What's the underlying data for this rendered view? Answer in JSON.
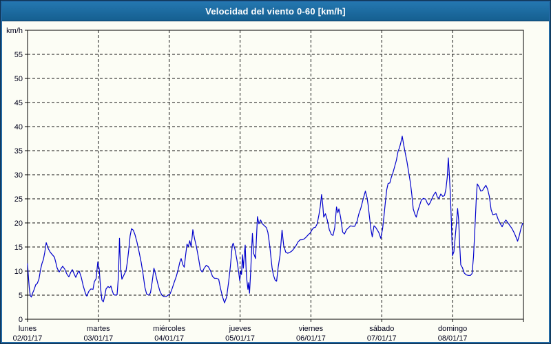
{
  "window": {
    "title": "Velocidad del viento 0-60 [km/h]"
  },
  "colors": {
    "title_bar_top": "#2477b0",
    "title_bar_bottom": "#155f90",
    "title_text": "#ffffff",
    "frame_border": "#2268a2",
    "background": "#fcfdf5",
    "plot_frame": "#000000",
    "grid": "#141414",
    "axis_text": "#00001a",
    "line": "#0000cc"
  },
  "chart_data": {
    "type": "line",
    "title": "Velocidad del viento 0-60 [km/h]",
    "ylabel": "km/h",
    "xlabel": "",
    "ylim": [
      0,
      60
    ],
    "ytick_step": 5,
    "ytick_label_max": 55,
    "grid": "dashed",
    "legend": "none",
    "x_days": [
      {
        "name": "lunes",
        "date": "02/01/17"
      },
      {
        "name": "martes",
        "date": "03/01/17"
      },
      {
        "name": "miércoles",
        "date": "04/01/17"
      },
      {
        "name": "jueves",
        "date": "05/01/17"
      },
      {
        "name": "viernes",
        "date": "06/01/17"
      },
      {
        "name": "sábado",
        "date": "07/01/17"
      },
      {
        "name": "domingo",
        "date": "08/01/17"
      }
    ],
    "x_range_days": [
      0,
      7
    ],
    "series": [
      {
        "name": "Velocidad del viento",
        "unit": "km/h",
        "color": "#0000cc",
        "points": [
          [
            0.0,
            11.6
          ],
          [
            0.01,
            9.3
          ],
          [
            0.024,
            6.5
          ],
          [
            0.039,
            4.9
          ],
          [
            0.053,
            4.6
          ],
          [
            0.068,
            5.3
          ],
          [
            0.088,
            6.0
          ],
          [
            0.117,
            7.2
          ],
          [
            0.136,
            7.4
          ],
          [
            0.16,
            8.3
          ],
          [
            0.185,
            10.4
          ],
          [
            0.204,
            11.6
          ],
          [
            0.224,
            12.4
          ],
          [
            0.243,
            13.9
          ],
          [
            0.263,
            15.9
          ],
          [
            0.292,
            14.7
          ],
          [
            0.321,
            13.9
          ],
          [
            0.35,
            13.4
          ],
          [
            0.379,
            12.9
          ],
          [
            0.399,
            11.8
          ],
          [
            0.418,
            10.6
          ],
          [
            0.447,
            9.8
          ],
          [
            0.476,
            10.6
          ],
          [
            0.496,
            11.0
          ],
          [
            0.525,
            10.4
          ],
          [
            0.554,
            9.4
          ],
          [
            0.583,
            8.8
          ],
          [
            0.612,
            9.8
          ],
          [
            0.632,
            10.3
          ],
          [
            0.661,
            9.3
          ],
          [
            0.681,
            8.7
          ],
          [
            0.71,
            9.7
          ],
          [
            0.729,
            10.0
          ],
          [
            0.758,
            8.7
          ],
          [
            0.787,
            6.9
          ],
          [
            0.817,
            5.4
          ],
          [
            0.836,
            4.8
          ],
          [
            0.865,
            5.8
          ],
          [
            0.894,
            6.3
          ],
          [
            0.924,
            6.2
          ],
          [
            0.943,
            7.8
          ],
          [
            0.967,
            8.4
          ],
          [
            0.992,
            11.9
          ],
          [
            1.011,
            10.5
          ],
          [
            1.031,
            6.5
          ],
          [
            1.05,
            4.0
          ],
          [
            1.069,
            3.6
          ],
          [
            1.089,
            4.8
          ],
          [
            1.108,
            6.3
          ],
          [
            1.137,
            6.8
          ],
          [
            1.157,
            6.5
          ],
          [
            1.176,
            6.9
          ],
          [
            1.196,
            5.9
          ],
          [
            1.215,
            5.1
          ],
          [
            1.244,
            5.0
          ],
          [
            1.264,
            5.1
          ],
          [
            1.283,
            9.0
          ],
          [
            1.298,
            16.8
          ],
          [
            1.312,
            11.0
          ],
          [
            1.332,
            8.3
          ],
          [
            1.351,
            8.9
          ],
          [
            1.371,
            9.5
          ],
          [
            1.39,
            10.1
          ],
          [
            1.41,
            12.0
          ],
          [
            1.429,
            14.5
          ],
          [
            1.448,
            17.3
          ],
          [
            1.468,
            18.8
          ],
          [
            1.492,
            18.5
          ],
          [
            1.516,
            17.6
          ],
          [
            1.545,
            16.0
          ],
          [
            1.574,
            14.0
          ],
          [
            1.604,
            11.8
          ],
          [
            1.633,
            9.1
          ],
          [
            1.657,
            6.6
          ],
          [
            1.682,
            5.2
          ],
          [
            1.711,
            5.0
          ],
          [
            1.735,
            5.5
          ],
          [
            1.76,
            7.8
          ],
          [
            1.784,
            10.6
          ],
          [
            1.808,
            9.3
          ],
          [
            1.837,
            7.5
          ],
          [
            1.867,
            5.9
          ],
          [
            1.896,
            5.0
          ],
          [
            1.925,
            4.7
          ],
          [
            1.954,
            4.7
          ],
          [
            1.983,
            5.0
          ],
          [
            2.013,
            5.3
          ],
          [
            2.042,
            6.4
          ],
          [
            2.071,
            7.7
          ],
          [
            2.1,
            8.9
          ],
          [
            2.129,
            10.5
          ],
          [
            2.149,
            11.8
          ],
          [
            2.168,
            12.6
          ],
          [
            2.193,
            11.3
          ],
          [
            2.212,
            10.8
          ],
          [
            2.231,
            13.3
          ],
          [
            2.251,
            15.6
          ],
          [
            2.27,
            15.1
          ],
          [
            2.29,
            16.3
          ],
          [
            2.309,
            15.0
          ],
          [
            2.333,
            18.6
          ],
          [
            2.358,
            16.7
          ],
          [
            2.382,
            15.2
          ],
          [
            2.411,
            12.9
          ],
          [
            2.44,
            10.3
          ],
          [
            2.465,
            9.8
          ],
          [
            2.494,
            10.6
          ],
          [
            2.523,
            11.2
          ],
          [
            2.552,
            10.9
          ],
          [
            2.581,
            10.1
          ],
          [
            2.61,
            8.9
          ],
          [
            2.64,
            8.5
          ],
          [
            2.669,
            8.5
          ],
          [
            2.698,
            8.3
          ],
          [
            2.722,
            6.5
          ],
          [
            2.751,
            4.7
          ],
          [
            2.781,
            3.4
          ],
          [
            2.81,
            4.6
          ],
          [
            2.839,
            7.8
          ],
          [
            2.863,
            11.0
          ],
          [
            2.888,
            15.2
          ],
          [
            2.902,
            15.8
          ],
          [
            2.926,
            14.6
          ],
          [
            2.956,
            12.3
          ],
          [
            2.98,
            9.8
          ],
          [
            2.995,
            8.0
          ],
          [
            3.009,
            9.9
          ],
          [
            3.021,
            9.3
          ],
          [
            3.033,
            13.4
          ],
          [
            3.046,
            10.6
          ],
          [
            3.062,
            13.8
          ],
          [
            3.072,
            15.4
          ],
          [
            3.085,
            10.5
          ],
          [
            3.094,
            8.4
          ],
          [
            3.111,
            6.2
          ],
          [
            3.121,
            7.6
          ],
          [
            3.133,
            5.4
          ],
          [
            3.15,
            10.0
          ],
          [
            3.162,
            14.0
          ],
          [
            3.174,
            17.8
          ],
          [
            3.191,
            13.7
          ],
          [
            3.218,
            12.6
          ],
          [
            3.245,
            21.3
          ],
          [
            3.266,
            19.8
          ],
          [
            3.29,
            20.6
          ],
          [
            3.315,
            19.8
          ],
          [
            3.344,
            19.4
          ],
          [
            3.373,
            19.0
          ],
          [
            3.393,
            18.0
          ],
          [
            3.419,
            15.2
          ],
          [
            3.434,
            13.1
          ],
          [
            3.451,
            10.7
          ],
          [
            3.47,
            9.2
          ],
          [
            3.495,
            8.1
          ],
          [
            3.516,
            7.9
          ],
          [
            3.538,
            10.8
          ],
          [
            3.563,
            13.2
          ],
          [
            3.592,
            18.5
          ],
          [
            3.616,
            15.3
          ],
          [
            3.645,
            13.9
          ],
          [
            3.674,
            13.7
          ],
          [
            3.703,
            13.9
          ],
          [
            3.733,
            14.2
          ],
          [
            3.762,
            14.7
          ],
          [
            3.791,
            15.3
          ],
          [
            3.82,
            16.1
          ],
          [
            3.849,
            16.5
          ],
          [
            3.878,
            16.5
          ],
          [
            3.907,
            16.7
          ],
          [
            3.936,
            17.1
          ],
          [
            3.966,
            17.6
          ],
          [
            3.99,
            17.9
          ],
          [
            4.016,
            18.6
          ],
          [
            4.04,
            19.0
          ],
          [
            4.064,
            19.1
          ],
          [
            4.088,
            19.8
          ],
          [
            4.113,
            21.7
          ],
          [
            4.132,
            23.4
          ],
          [
            4.15,
            25.9
          ],
          [
            4.166,
            23.9
          ],
          [
            4.181,
            21.2
          ],
          [
            4.205,
            21.9
          ],
          [
            4.229,
            20.7
          ],
          [
            4.259,
            18.6
          ],
          [
            4.288,
            17.6
          ],
          [
            4.312,
            17.4
          ],
          [
            4.336,
            19.0
          ],
          [
            4.361,
            23.3
          ],
          [
            4.38,
            22.1
          ],
          [
            4.395,
            22.9
          ],
          [
            4.419,
            21.2
          ],
          [
            4.448,
            18.1
          ],
          [
            4.473,
            17.7
          ],
          [
            4.502,
            18.6
          ],
          [
            4.531,
            19.0
          ],
          [
            4.56,
            19.4
          ],
          [
            4.589,
            19.3
          ],
          [
            4.618,
            19.3
          ],
          [
            4.648,
            20.2
          ],
          [
            4.677,
            21.9
          ],
          [
            4.706,
            23.1
          ],
          [
            4.735,
            24.8
          ],
          [
            4.769,
            26.6
          ],
          [
            4.793,
            25.2
          ],
          [
            4.808,
            23.7
          ],
          [
            4.827,
            21.2
          ],
          [
            4.846,
            18.8
          ],
          [
            4.866,
            17.1
          ],
          [
            4.89,
            19.4
          ],
          [
            4.914,
            19.1
          ],
          [
            4.934,
            18.6
          ],
          [
            4.958,
            18.0
          ],
          [
            4.987,
            16.8
          ],
          [
            5.012,
            18.8
          ],
          [
            5.031,
            21.4
          ],
          [
            5.051,
            24.3
          ],
          [
            5.07,
            26.9
          ],
          [
            5.09,
            28.2
          ],
          [
            5.114,
            28.3
          ],
          [
            5.133,
            29.4
          ],
          [
            5.158,
            30.4
          ],
          [
            5.182,
            31.7
          ],
          [
            5.206,
            33.0
          ],
          [
            5.231,
            34.9
          ],
          [
            5.25,
            35.6
          ],
          [
            5.269,
            36.7
          ],
          [
            5.289,
            38.0
          ],
          [
            5.308,
            36.3
          ],
          [
            5.332,
            34.5
          ],
          [
            5.356,
            32.7
          ],
          [
            5.381,
            30.4
          ],
          [
            5.405,
            28.3
          ],
          [
            5.424,
            25.9
          ],
          [
            5.444,
            22.9
          ],
          [
            5.468,
            21.8
          ],
          [
            5.487,
            21.2
          ],
          [
            5.512,
            22.6
          ],
          [
            5.536,
            23.7
          ],
          [
            5.56,
            24.8
          ],
          [
            5.59,
            25.1
          ],
          [
            5.619,
            24.9
          ],
          [
            5.643,
            24.1
          ],
          [
            5.662,
            23.7
          ],
          [
            5.687,
            24.3
          ],
          [
            5.716,
            25.3
          ],
          [
            5.74,
            26.0
          ],
          [
            5.76,
            26.4
          ],
          [
            5.784,
            25.4
          ],
          [
            5.808,
            25.1
          ],
          [
            5.833,
            26.0
          ],
          [
            5.862,
            25.5
          ],
          [
            5.886,
            25.7
          ],
          [
            5.905,
            27.0
          ],
          [
            5.925,
            29.5
          ],
          [
            5.939,
            33.5
          ],
          [
            5.954,
            30.0
          ],
          [
            5.969,
            25.5
          ],
          [
            5.983,
            20.0
          ],
          [
            5.998,
            13.2
          ],
          [
            6.018,
            14.0
          ],
          [
            6.037,
            17.0
          ],
          [
            6.057,
            20.5
          ],
          [
            6.071,
            23.0
          ],
          [
            6.086,
            20.5
          ],
          [
            6.1,
            15.5
          ],
          [
            6.115,
            11.3
          ],
          [
            6.139,
            10.7
          ],
          [
            6.164,
            9.6
          ],
          [
            6.193,
            9.2
          ],
          [
            6.222,
            9.1
          ],
          [
            6.251,
            9.1
          ],
          [
            6.275,
            9.5
          ],
          [
            6.295,
            13.0
          ],
          [
            6.314,
            18.5
          ],
          [
            6.334,
            25.0
          ],
          [
            6.348,
            28.1
          ],
          [
            6.373,
            27.5
          ],
          [
            6.397,
            26.6
          ],
          [
            6.421,
            26.7
          ],
          [
            6.446,
            27.3
          ],
          [
            6.47,
            27.8
          ],
          [
            6.494,
            27.0
          ],
          [
            6.519,
            25.5
          ],
          [
            6.543,
            22.8
          ],
          [
            6.567,
            21.7
          ],
          [
            6.592,
            21.8
          ],
          [
            6.616,
            21.9
          ],
          [
            6.641,
            20.8
          ],
          [
            6.67,
            19.9
          ],
          [
            6.699,
            19.2
          ],
          [
            6.728,
            20.1
          ],
          [
            6.752,
            20.6
          ],
          [
            6.777,
            20.1
          ],
          [
            6.806,
            19.5
          ],
          [
            6.835,
            18.9
          ],
          [
            6.864,
            18.1
          ],
          [
            6.888,
            17.3
          ],
          [
            6.917,
            16.2
          ],
          [
            6.942,
            17.4
          ],
          [
            6.966,
            18.9
          ],
          [
            6.99,
            20.0
          ]
        ]
      }
    ]
  }
}
